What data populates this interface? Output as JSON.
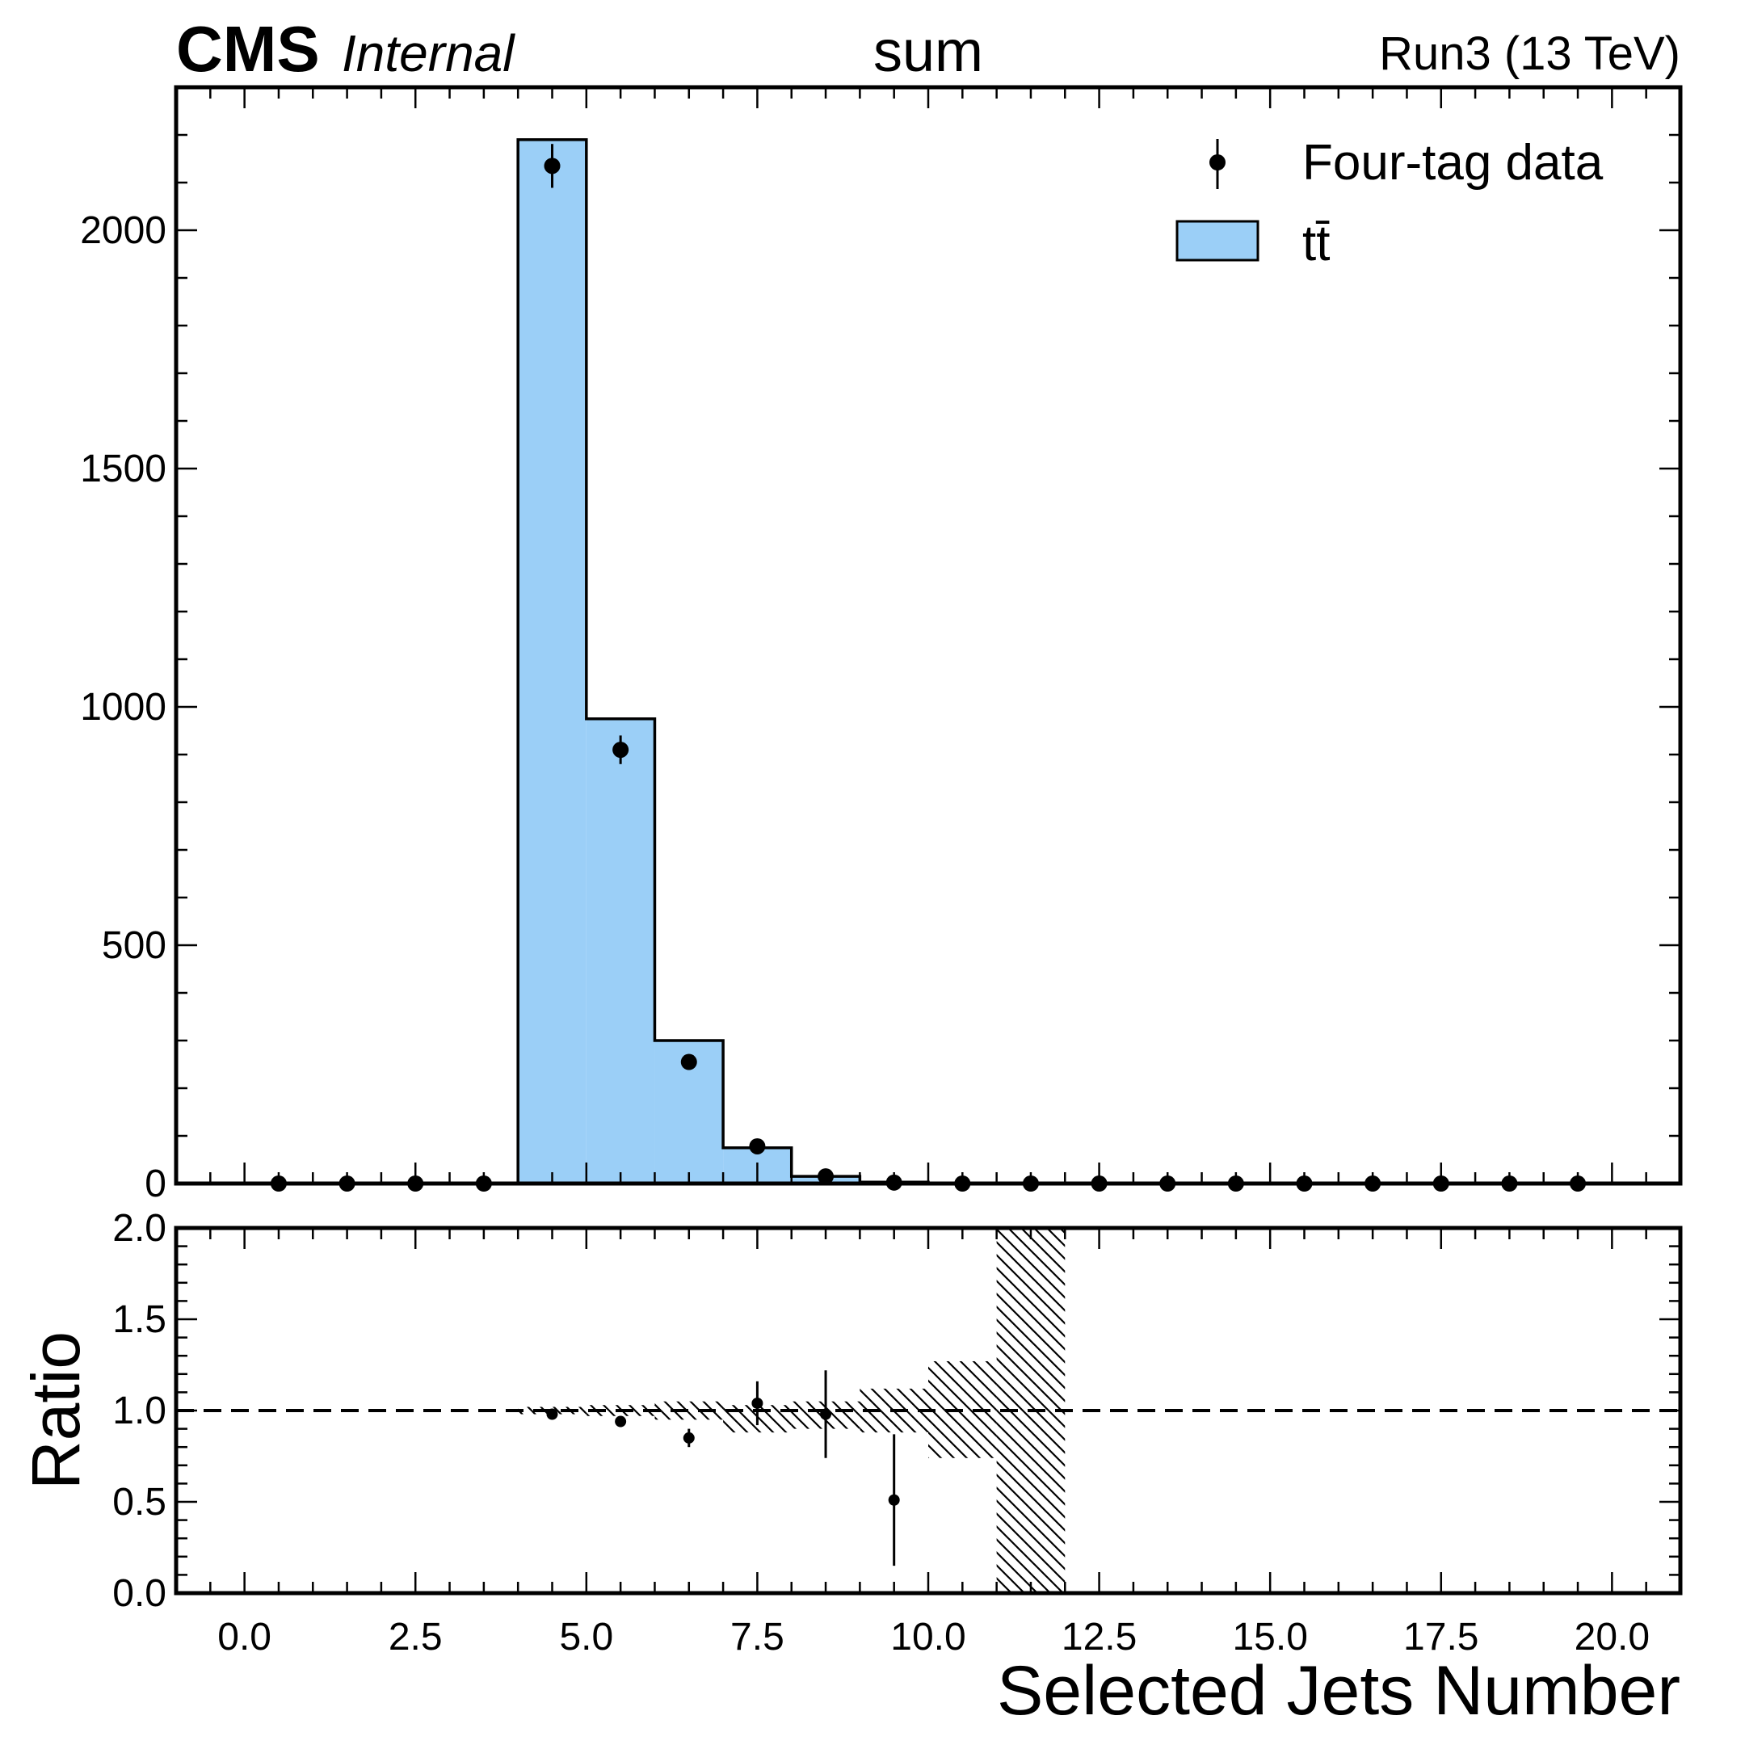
{
  "header": {
    "cms": "CMS",
    "status": "Internal",
    "title": "sum",
    "lumi": "Run3 (13 TeV)"
  },
  "chart_data": [
    {
      "type": "bar",
      "panel": "main",
      "bin_edges": [
        -1,
        0,
        1,
        2,
        3,
        4,
        5,
        6,
        7,
        8,
        9,
        10,
        11,
        12,
        13,
        14,
        15,
        16,
        17,
        18,
        19,
        20,
        21
      ],
      "xlim": [
        -1,
        21
      ],
      "ylim": [
        0,
        2300
      ],
      "ylabel": "",
      "yticks": [
        0,
        500,
        1000,
        1500,
        2000
      ],
      "yticklabels": [
        "0",
        "500",
        "1000",
        "1500",
        "2000"
      ],
      "yminor_step": 100,
      "legend_position": "top-right",
      "fill_color": "#9bcff7",
      "series": [
        {
          "name": "tt̄",
          "kind": "stacked-histogram",
          "bin_lo": [
            4,
            5,
            6,
            7,
            8,
            9,
            10,
            11
          ],
          "bin_hi": [
            5,
            6,
            7,
            8,
            9,
            10,
            11,
            12
          ],
          "values": [
            2190,
            975,
            300,
            75,
            15,
            3,
            1,
            0.5
          ]
        },
        {
          "name": "Four-tag data",
          "kind": "errorbar",
          "x": [
            0.5,
            1.5,
            2.5,
            3.5,
            4.5,
            5.5,
            6.5,
            7.5,
            8.5,
            9.5,
            10.5,
            11.5,
            12.5,
            13.5,
            14.5,
            15.5,
            16.5,
            17.5,
            18.5,
            19.5
          ],
          "y": [
            0,
            0,
            0,
            0,
            2135,
            910,
            255,
            78,
            15,
            2,
            0,
            0,
            0,
            0,
            0,
            0,
            0,
            0,
            0,
            0
          ],
          "yerr": [
            0,
            0,
            0,
            0,
            46,
            30,
            16,
            9,
            4,
            1.4,
            0,
            0,
            0,
            0,
            0,
            0,
            0,
            0,
            0,
            0
          ]
        }
      ]
    },
    {
      "type": "scatter",
      "panel": "ratio",
      "xlabel": "Selected Jets Number",
      "ylabel": "Ratio",
      "xlim": [
        -1,
        21
      ],
      "ylim": [
        0,
        2
      ],
      "xticks": [
        0,
        2.5,
        5,
        7.5,
        10,
        12.5,
        15,
        17.5,
        20
      ],
      "xticklabels": [
        "0.0",
        "2.5",
        "5.0",
        "7.5",
        "10.0",
        "12.5",
        "15.0",
        "17.5",
        "20.0"
      ],
      "yticks": [
        0,
        0.5,
        1,
        1.5,
        2
      ],
      "yticklabels": [
        "0.0",
        "0.5",
        "1.0",
        "1.5",
        "2.0"
      ],
      "reference_line": 1.0,
      "uncertainty_band": {
        "bin_lo": [
          4,
          5,
          6,
          7,
          8,
          9,
          10,
          11
        ],
        "bin_hi": [
          5,
          6,
          7,
          8,
          9,
          10,
          11,
          12
        ],
        "lo": [
          0.98,
          0.97,
          0.95,
          0.88,
          0.9,
          0.88,
          0.74,
          0
        ],
        "hi": [
          1.02,
          1.03,
          1.05,
          1.03,
          1.05,
          1.12,
          1.27,
          2
        ]
      },
      "points": {
        "x": [
          4.5,
          5.5,
          6.5,
          7.5,
          8.5,
          9.5
        ],
        "y": [
          0.98,
          0.94,
          0.85,
          1.04,
          0.98,
          0.51
        ],
        "yerr": [
          0.02,
          0.03,
          0.05,
          0.12,
          0.24,
          0.36
        ]
      }
    }
  ]
}
